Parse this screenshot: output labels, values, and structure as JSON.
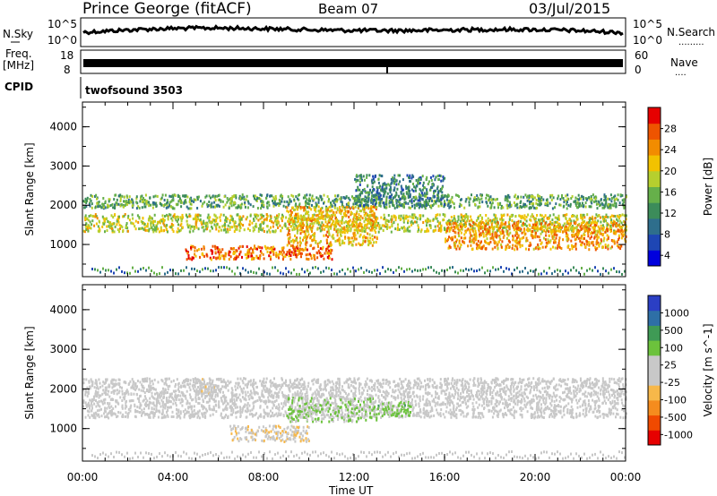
{
  "header": {
    "station": "Prince George (fitACF)",
    "beam": "Beam 07",
    "date": "03/Jul/2015"
  },
  "strips": {
    "nsky_label": "N.Sky",
    "nsky_ticks": [
      "10^5",
      "10^0"
    ],
    "nsearch_label": "N.Search",
    "nsearch_dots": ".........",
    "nsearch_ticks": [
      "10^5",
      "10^0"
    ],
    "freq_label": "Freq.",
    "freq_unit": "[MHz]",
    "freq_ticks": [
      "18",
      "8"
    ],
    "nave_label": "Nave",
    "nave_dots": "....",
    "nave_ticks": [
      "60",
      "0"
    ],
    "cpid_label": "CPID",
    "cpid_value": "twofsound 3503"
  },
  "colors": {
    "power_scale": [
      "#0000dd",
      "#1e46b4",
      "#2e6e8c",
      "#3c8c5a",
      "#66b04a",
      "#b6cf2e",
      "#f2c200",
      "#f28c00",
      "#ee5400",
      "#e60000"
    ],
    "velocity_scale": [
      "#e60000",
      "#f04a00",
      "#f58c1e",
      "#f7b84a",
      "#c8c8c8",
      "#c8c8c8",
      "#6cc23c",
      "#3f9a55",
      "#2e6fa6",
      "#2b3fc4"
    ]
  },
  "chart_data": [
    {
      "type": "heatmap",
      "name": "power",
      "xlabel": "",
      "ylabel": "Slant Range [km]",
      "x_ticks": [
        "00:00",
        "04:00",
        "08:00",
        "12:00",
        "16:00",
        "20:00",
        "00:00"
      ],
      "xlim_hours": [
        0,
        24
      ],
      "y_ticks": [
        "4000",
        "3000",
        "2000",
        "1000"
      ],
      "ylim_km": [
        180,
        4630
      ],
      "colorbar": {
        "label": "Power [dB]",
        "ticks": [
          "28",
          "24",
          "20",
          "16",
          "12",
          "8",
          "4"
        ],
        "range": [
          0,
          30
        ]
      },
      "scatter_bands": [
        {
          "hours": [
            0,
            24
          ],
          "range_km": [
            1950,
            2300
          ],
          "value": 12
        },
        {
          "hours": [
            0,
            24
          ],
          "range_km": [
            1350,
            1800
          ],
          "value": 17
        },
        {
          "hours": [
            4.5,
            11
          ],
          "range_km": [
            650,
            1000
          ],
          "value": 24
        },
        {
          "hours": [
            9,
            13
          ],
          "range_km": [
            1000,
            2000
          ],
          "value": 20
        },
        {
          "hours": [
            16,
            24
          ],
          "range_km": [
            900,
            1600
          ],
          "value": 22
        },
        {
          "hours": [
            12,
            16
          ],
          "range_km": [
            2000,
            2800
          ],
          "value": 9
        }
      ]
    },
    {
      "type": "heatmap",
      "name": "velocity",
      "xlabel": "Time UT",
      "ylabel": "Slant Range [km]",
      "x_ticks": [
        "00:00",
        "04:00",
        "08:00",
        "12:00",
        "16:00",
        "20:00",
        "00:00"
      ],
      "xlim_hours": [
        0,
        24
      ],
      "y_ticks": [
        "4000",
        "3000",
        "2000",
        "1000"
      ],
      "ylim_km": [
        180,
        4630
      ],
      "colorbar": {
        "label": "Velocity [m s^-1]",
        "ticks": [
          "1000",
          "500",
          "100",
          "25",
          "-25",
          "-100",
          "-500",
          "-1000"
        ],
        "range": [
          -1000,
          1000
        ]
      },
      "scatter_bands": [
        {
          "hours": [
            0,
            24
          ],
          "range_km": [
            1300,
            2300
          ],
          "value": 0
        },
        {
          "hours": [
            9,
            13
          ],
          "range_km": [
            1200,
            1800
          ],
          "value": 200
        },
        {
          "hours": [
            6.5,
            10
          ],
          "range_km": [
            700,
            1100
          ],
          "value": -150
        },
        {
          "hours": [
            5,
            6
          ],
          "range_km": [
            1900,
            2300
          ],
          "value": -80
        },
        {
          "hours": [
            13,
            14.5
          ],
          "range_km": [
            1350,
            1700
          ],
          "value": 300
        }
      ]
    }
  ]
}
